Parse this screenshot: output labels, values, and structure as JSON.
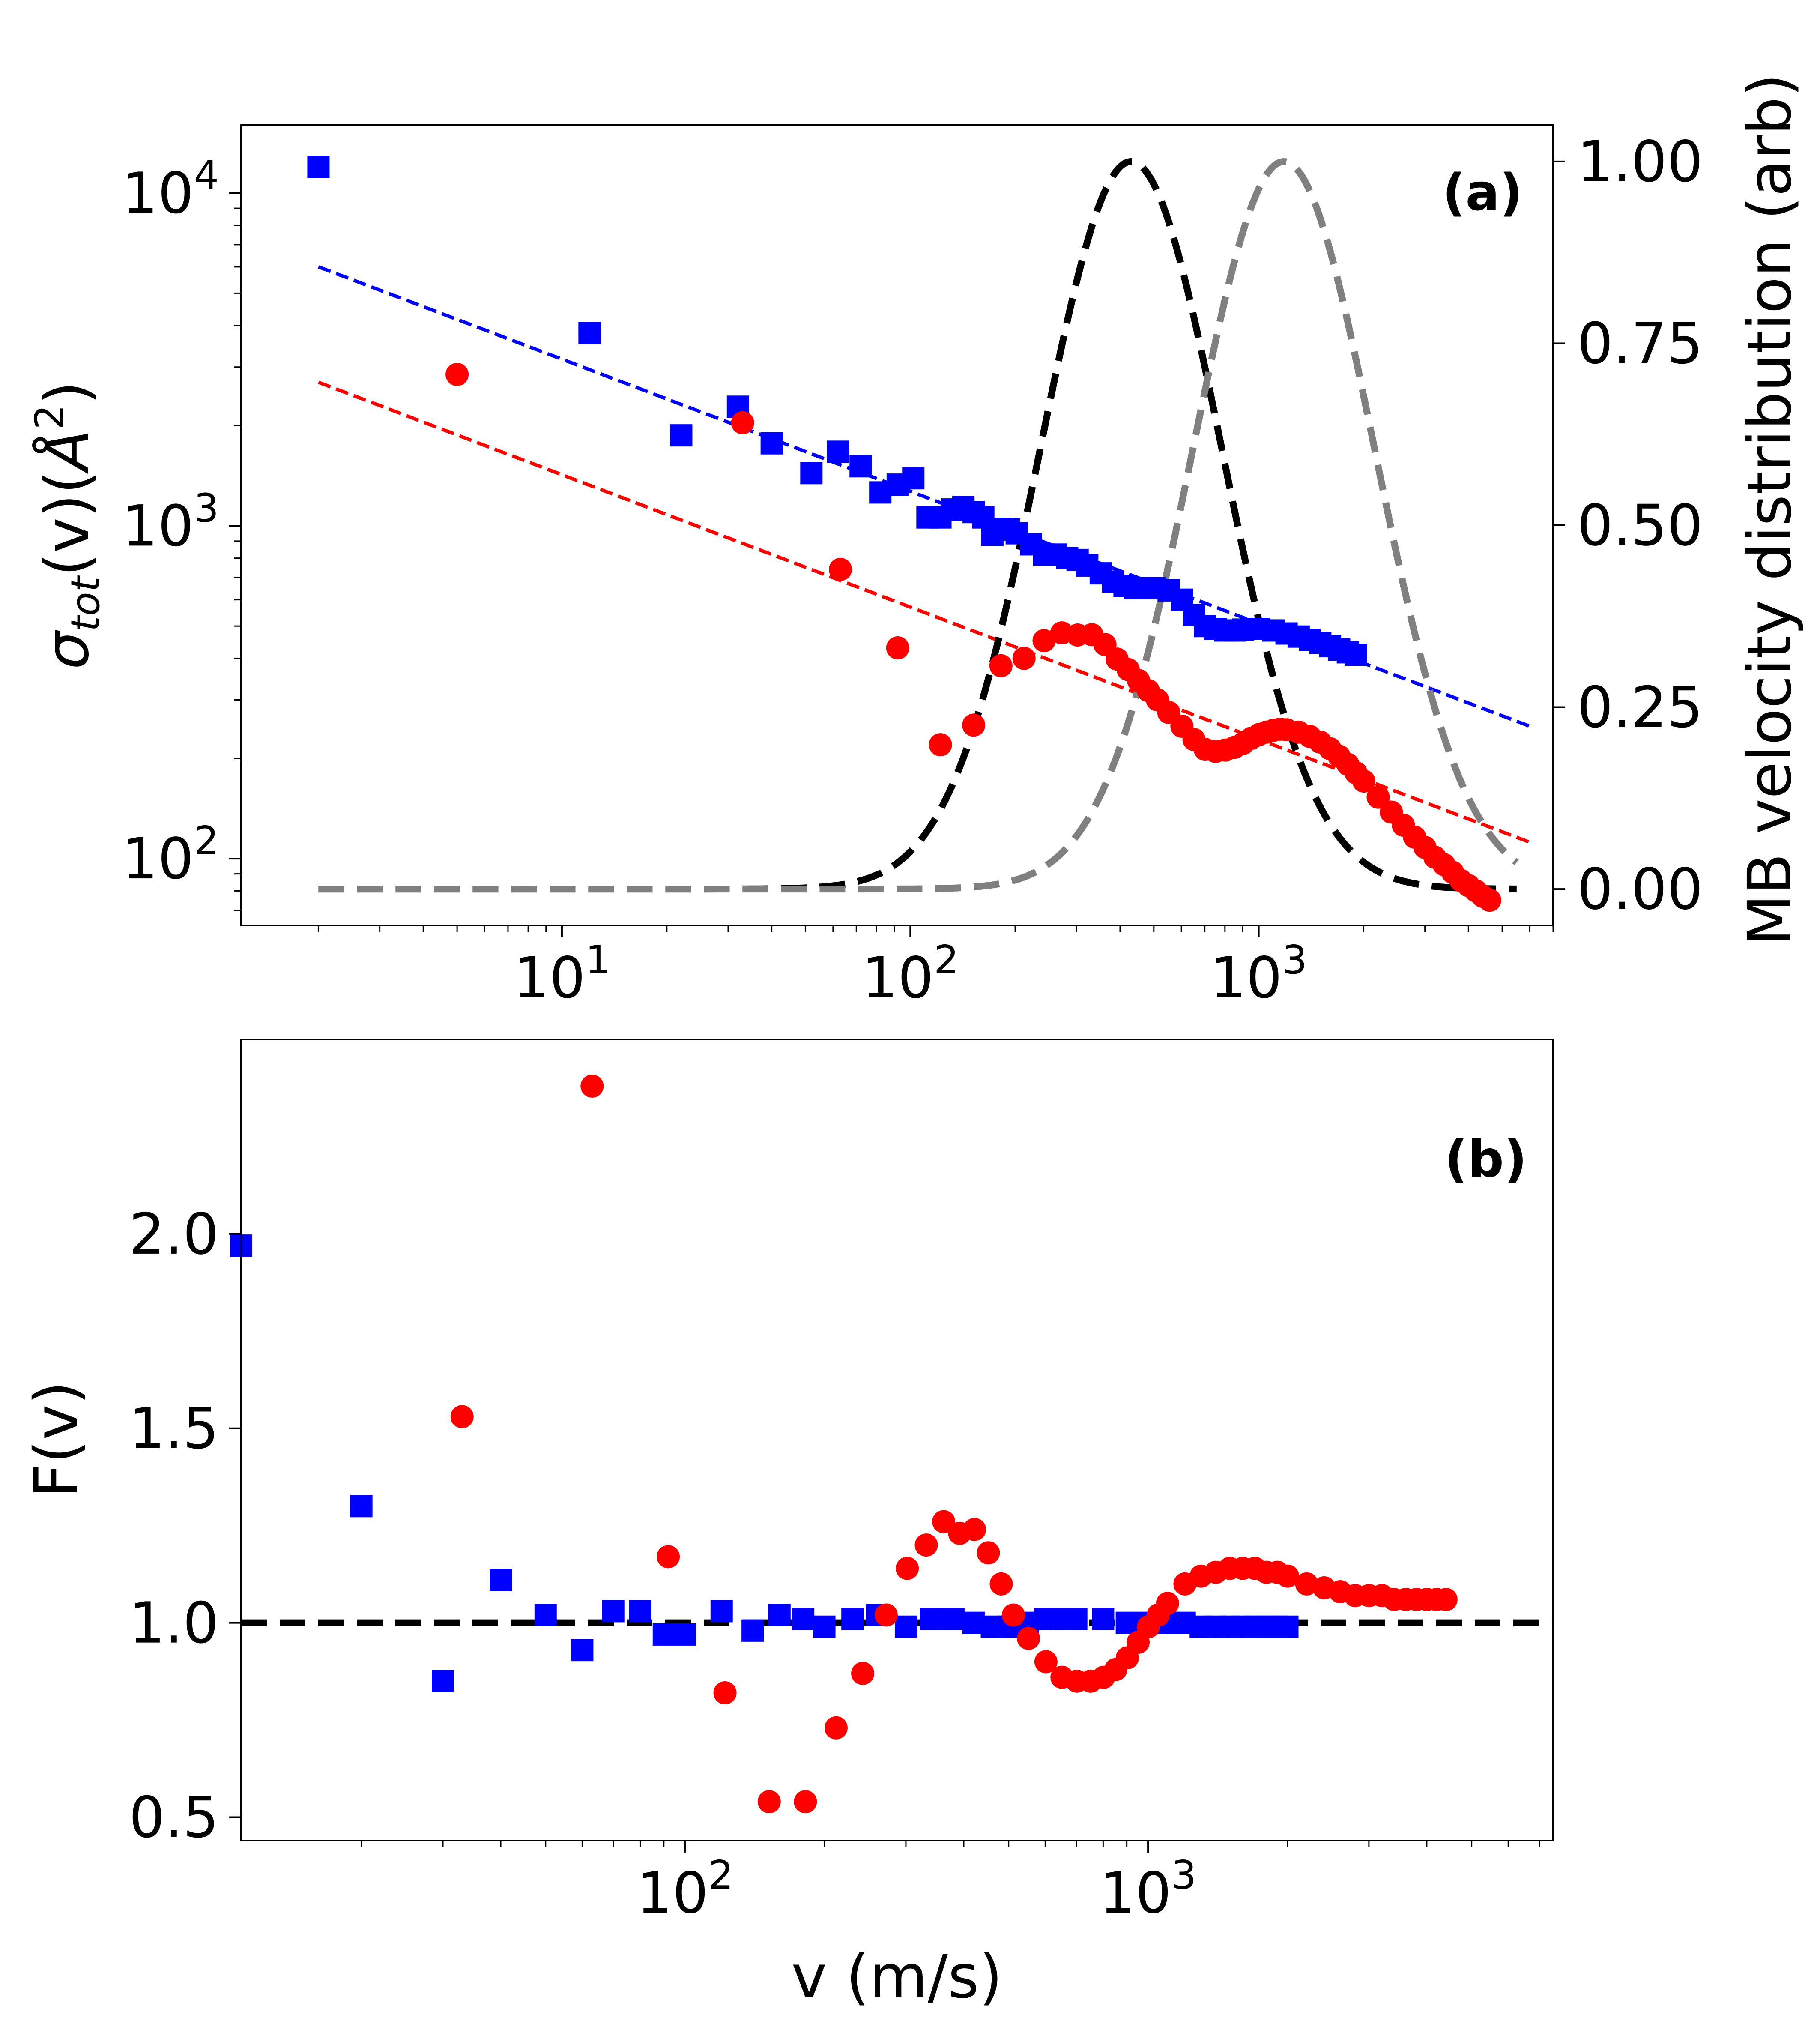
{
  "chart_data": [
    {
      "type": "scatter",
      "panel_label": "(a)",
      "xscale": "log",
      "yscale": "log",
      "xlim": [
        1.2,
        7000
      ],
      "ylim": [
        63,
        16000
      ],
      "ylabel": "σtot(v)(Å²)",
      "ylabel_parts": {
        "sigma": "σ",
        "sub": "tot",
        "func": "(v)(",
        "angstrom": "Å",
        "sup": "2",
        "close": ")"
      },
      "xticks": [
        {
          "value": 10,
          "base": "10",
          "exp": "1"
        },
        {
          "value": 100,
          "base": "10",
          "exp": "2"
        },
        {
          "value": 1000,
          "base": "10",
          "exp": "3"
        }
      ],
      "yticks": [
        {
          "value": 100,
          "base": "10",
          "exp": "2"
        },
        {
          "value": 1000,
          "base": "10",
          "exp": "3"
        },
        {
          "value": 10000,
          "base": "10",
          "exp": "4"
        }
      ],
      "series": [
        {
          "name": "blue squares",
          "marker": "square",
          "color": "#0000ff",
          "x": [
            2,
            12,
            22,
            32,
            40,
            52,
            62,
            72,
            82,
            92,
            102,
            112,
            122,
            132,
            142,
            152,
            162,
            172,
            182,
            192,
            202,
            222,
            242,
            262,
            282,
            302,
            322,
            352,
            382,
            412,
            442,
            472,
            502,
            552,
            602,
            652,
            702,
            752,
            802,
            852,
            902,
            952,
            1002,
            1102,
            1202,
            1302,
            1402,
            1502,
            1602,
            1702,
            1802,
            1902
          ],
          "y": [
            12000,
            3800,
            1870,
            2280,
            1770,
            1440,
            1670,
            1510,
            1260,
            1330,
            1390,
            1060,
            1060,
            1120,
            1140,
            1100,
            1060,
            940,
            980,
            975,
            950,
            880,
            820,
            820,
            800,
            790,
            760,
            720,
            680,
            660,
            650,
            650,
            650,
            640,
            600,
            540,
            500,
            490,
            485,
            485,
            488,
            490,
            490,
            485,
            475,
            465,
            455,
            445,
            435,
            425,
            417,
            410
          ]
        },
        {
          "name": "red circles",
          "marker": "circle",
          "color": "#ff0000",
          "x": [
            5,
            33,
            63,
            92,
            122,
            152,
            182,
            212,
            242,
            272,
            302,
            332,
            362,
            392,
            422,
            452,
            482,
            512,
            552,
            602,
            652,
            702,
            752,
            802,
            852,
            902,
            952,
            1002,
            1052,
            1102,
            1152,
            1202,
            1302,
            1402,
            1502,
            1602,
            1702,
            1802,
            1902,
            2002,
            2202,
            2402,
            2602,
            2802,
            3002,
            3202,
            3402,
            3602,
            3802,
            4002,
            4202,
            4402,
            4602
          ],
          "y": [
            2850,
            2040,
            740,
            430,
            220,
            252,
            380,
            400,
            452,
            477,
            470,
            471,
            440,
            398,
            370,
            343,
            320,
            300,
            275,
            250,
            228,
            213,
            210,
            212,
            216,
            222,
            230,
            236,
            240,
            243,
            245,
            244,
            240,
            233,
            224,
            214,
            203,
            192,
            181,
            171,
            153,
            138,
            126,
            116,
            108,
            101,
            96,
            91,
            86,
            83,
            80,
            77,
            75
          ]
        }
      ],
      "fit_lines": [
        {
          "name": "blue fit",
          "color": "#0000ff",
          "x": [
            2,
            6000
          ],
          "y": [
            6000,
            250
          ]
        },
        {
          "name": "red fit",
          "color": "#ff0000",
          "x": [
            2,
            6000
          ],
          "y": [
            2700,
            112
          ]
        }
      ],
      "secondary_y": {
        "label": "MB velocity distribution (arb)",
        "lim": [
          -0.05,
          1.05
        ],
        "ticks": [
          "0.00",
          "0.25",
          "0.50",
          "0.75",
          "1.00"
        ],
        "curves": [
          {
            "name": "MB black",
            "color": "#000000",
            "peak_v": 430,
            "width_log10": 0.26
          },
          {
            "name": "MB gray",
            "color": "#808080",
            "peak_v": 1180,
            "width_log10": 0.26
          }
        ]
      }
    },
    {
      "type": "scatter",
      "panel_label": "(b)",
      "xscale": "log",
      "yscale": "linear",
      "xlim": [
        11,
        7500
      ],
      "ylim": [
        0.44,
        2.5
      ],
      "xlabel": "v (m/s)",
      "ylabel": "F(v)",
      "xticks": [
        {
          "value": 100,
          "base": "10",
          "exp": "2"
        },
        {
          "value": 1000,
          "base": "10",
          "exp": "3"
        }
      ],
      "yticks": [
        "0.5",
        "1.0",
        "1.5",
        "2.0"
      ],
      "reference_line": {
        "y": 1.0,
        "color": "#000000",
        "style": "dashed"
      },
      "series": [
        {
          "name": "blue squares",
          "marker": "square",
          "color": "#0000ff",
          "x": [
            11,
            20,
            30,
            40,
            50,
            60,
            70,
            80,
            90,
            100,
            120,
            140,
            160,
            180,
            200,
            230,
            260,
            300,
            340,
            380,
            420,
            460,
            500,
            550,
            600,
            650,
            700,
            800,
            900,
            1000,
            1100,
            1200,
            1300,
            1400,
            1500,
            1600,
            1700,
            1800,
            1900,
            2000
          ],
          "y": [
            1.97,
            1.3,
            0.85,
            1.11,
            1.02,
            0.93,
            1.03,
            1.03,
            0.97,
            0.97,
            1.03,
            0.98,
            1.02,
            1.01,
            0.99,
            1.01,
            1.02,
            0.99,
            1.01,
            1.01,
            1.0,
            0.99,
            0.99,
            1.0,
            1.01,
            1.01,
            1.01,
            1.01,
            1.0,
            1.0,
            1.0,
            1.0,
            0.99,
            0.99,
            0.99,
            0.99,
            0.99,
            0.99,
            0.99,
            0.99
          ]
        },
        {
          "name": "red circles",
          "marker": "circle",
          "color": "#ff0000",
          "x": [
            33,
            63,
            92,
            122,
            152,
            182,
            212,
            242,
            272,
            302,
            332,
            362,
            392,
            422,
            452,
            482,
            512,
            552,
            602,
            652,
            702,
            752,
            802,
            852,
            902,
            952,
            1002,
            1052,
            1102,
            1202,
            1302,
            1402,
            1502,
            1602,
            1702,
            1802,
            1902,
            2002,
            2202,
            2402,
            2602,
            2802,
            3002,
            3202,
            3402,
            3602,
            3802,
            4002,
            4202,
            4402
          ],
          "y": [
            1.53,
            2.38,
            1.17,
            0.82,
            0.54,
            0.54,
            0.73,
            0.87,
            1.02,
            1.14,
            1.2,
            1.26,
            1.23,
            1.24,
            1.18,
            1.1,
            1.02,
            0.96,
            0.9,
            0.86,
            0.85,
            0.85,
            0.86,
            0.88,
            0.91,
            0.95,
            0.99,
            1.02,
            1.05,
            1.1,
            1.12,
            1.13,
            1.14,
            1.14,
            1.14,
            1.13,
            1.13,
            1.12,
            1.1,
            1.09,
            1.08,
            1.07,
            1.07,
            1.07,
            1.06,
            1.06,
            1.06,
            1.06,
            1.06,
            1.06
          ]
        }
      ]
    }
  ]
}
